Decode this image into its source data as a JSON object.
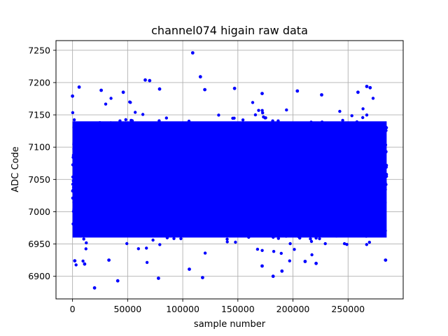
{
  "chart_data": {
    "type": "scatter",
    "title": "channel074 higain raw data",
    "xlabel": "sample number",
    "ylabel": "ADC Code",
    "xlim": [
      -15000,
      300000
    ],
    "ylim": [
      6865,
      7265
    ],
    "xticks": [
      0,
      50000,
      100000,
      150000,
      200000,
      250000
    ],
    "xtick_labels": [
      "0",
      "50000",
      "100000",
      "150000",
      "200000",
      "250000"
    ],
    "yticks": [
      6900,
      6950,
      7000,
      7050,
      7100,
      7150,
      7200,
      7250
    ],
    "ytick_labels": [
      "6900",
      "6950",
      "7000",
      "7050",
      "7100",
      "7150",
      "7200",
      "7250"
    ],
    "grid": true,
    "marker": "circle",
    "series": [
      {
        "color": "#0000ff",
        "sample_range": [
          0,
          285000
        ],
        "dense_band": [
          6940,
          7160
        ],
        "points": [
          {
            "x": 109000,
            "y": 7246
          },
          {
            "x": 116000,
            "y": 7209
          },
          {
            "x": 66000,
            "y": 7204
          },
          {
            "x": 70000,
            "y": 7203
          },
          {
            "x": 6000,
            "y": 7193
          },
          {
            "x": 267000,
            "y": 7194
          },
          {
            "x": 270000,
            "y": 7192
          },
          {
            "x": 79000,
            "y": 7190
          },
          {
            "x": 120000,
            "y": 7189
          },
          {
            "x": 147000,
            "y": 7191
          },
          {
            "x": 204000,
            "y": 7187
          },
          {
            "x": 26000,
            "y": 7188
          },
          {
            "x": 259000,
            "y": 7185
          },
          {
            "x": 172000,
            "y": 7183
          },
          {
            "x": 0,
            "y": 7179
          },
          {
            "x": 46000,
            "y": 7185
          },
          {
            "x": 226000,
            "y": 7181
          },
          {
            "x": 20000,
            "y": 6882
          },
          {
            "x": 41000,
            "y": 6893
          },
          {
            "x": 78000,
            "y": 6897
          },
          {
            "x": 118000,
            "y": 6898
          },
          {
            "x": 182000,
            "y": 6900
          },
          {
            "x": 106000,
            "y": 6911
          },
          {
            "x": 11000,
            "y": 6919
          },
          {
            "x": 172000,
            "y": 6916
          },
          {
            "x": 190000,
            "y": 6908
          },
          {
            "x": 211000,
            "y": 6923
          },
          {
            "x": 284000,
            "y": 6925
          },
          {
            "x": 221000,
            "y": 6920
          },
          {
            "x": 33000,
            "y": 6925
          },
          {
            "x": 2000,
            "y": 6924
          }
        ]
      }
    ]
  }
}
